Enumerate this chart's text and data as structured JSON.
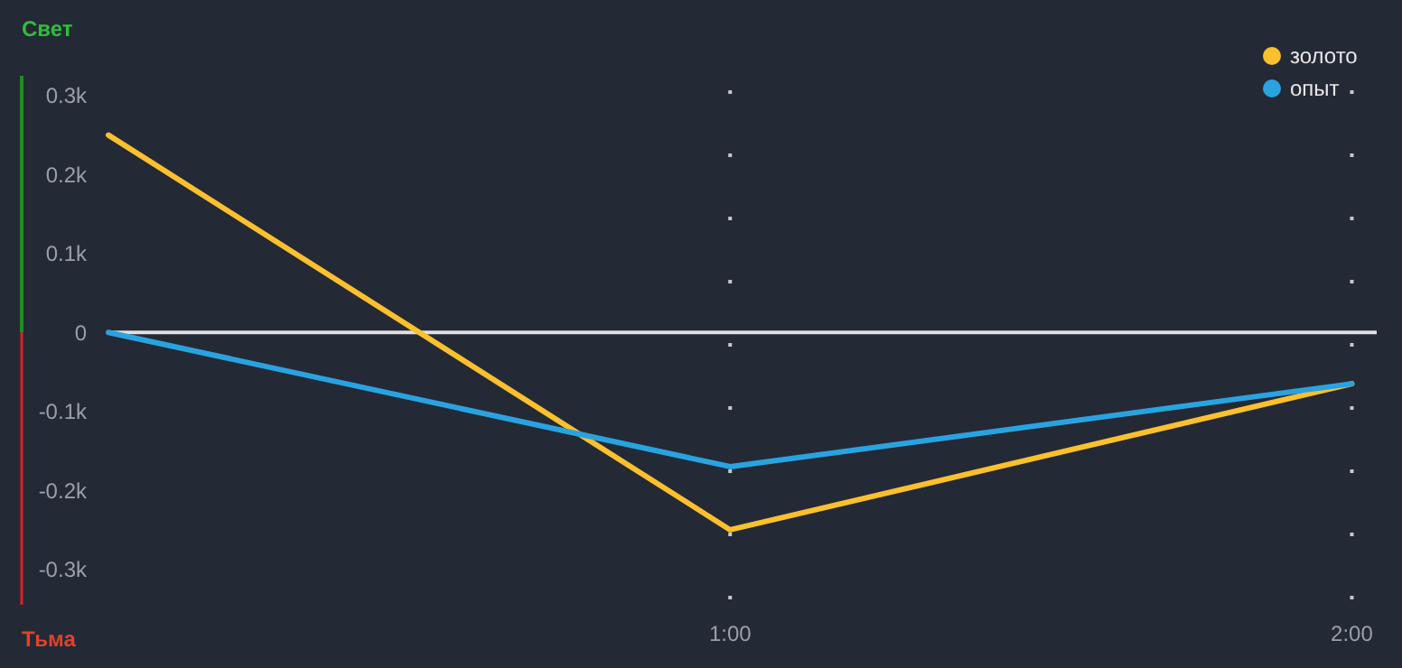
{
  "chart_data": {
    "type": "line",
    "x": [
      0,
      1,
      2
    ],
    "series": [
      {
        "name": "золото",
        "color": "#fbc02d",
        "values": [
          250,
          -250,
          -65
        ]
      },
      {
        "name": "опыт",
        "color": "#29a3e0",
        "values": [
          0,
          -170,
          -65
        ]
      }
    ],
    "xlim": [
      0,
      2.04
    ],
    "xticks": [
      {
        "value": 1,
        "label": "1:00"
      },
      {
        "value": 2,
        "label": "2:00"
      }
    ],
    "ylim": [
      -345,
      325
    ],
    "yticks": [
      {
        "value": -300,
        "label": "-0.3k"
      },
      {
        "value": -200,
        "label": "-0.2k"
      },
      {
        "value": -100,
        "label": "-0.1k"
      },
      0,
      {
        "value": 100,
        "label": "0.1k"
      },
      {
        "value": 200,
        "label": "0.2k"
      },
      {
        "value": 300,
        "label": "0.3k"
      }
    ],
    "grid": "x",
    "legend": "top right",
    "marker": "none",
    "line_style": "solid",
    "ref_lines": [
      {
        "axis": "y",
        "value": 0,
        "color": "#e0e0e0"
      }
    ],
    "annotations": [
      "Свет",
      "Тьма"
    ]
  }
}
